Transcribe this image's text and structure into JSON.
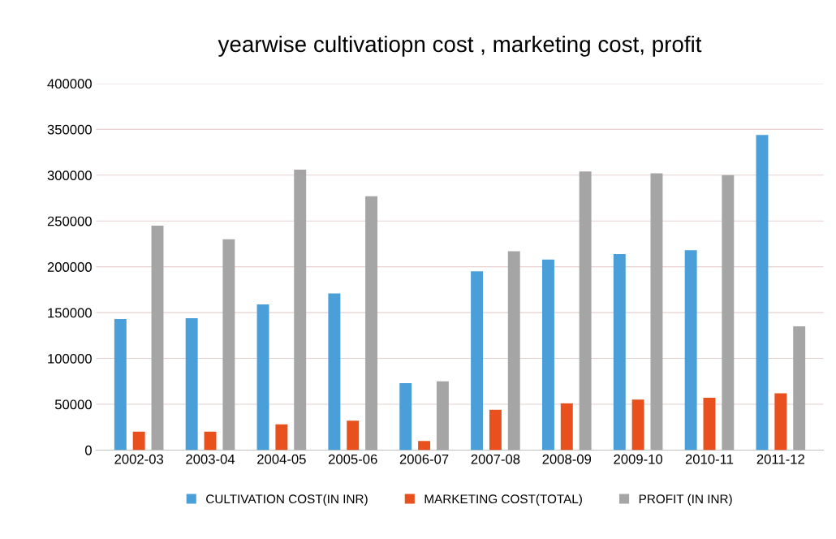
{
  "chart_data": {
    "type": "bar",
    "title": "yearwise cultivatiopn cost , marketing cost, profit",
    "categories": [
      "2002-03",
      "2003-04",
      "2004-05",
      "2005-06",
      "2006-07",
      "2007-08",
      "2008-09",
      "2009-10",
      "2010-11",
      "2011-12"
    ],
    "series": [
      {
        "name": "CULTIVATION COST(IN INR)",
        "color": "#4a9fd8",
        "values": [
          143000,
          144000,
          159000,
          171000,
          73000,
          195000,
          208000,
          214000,
          218000,
          344000
        ]
      },
      {
        "name": "MARKETING COST(TOTAL)",
        "color": "#e8501e",
        "values": [
          20000,
          20000,
          28000,
          32000,
          10000,
          44000,
          51000,
          55000,
          57000,
          62000
        ]
      },
      {
        "name": "PROFIT (IN INR)",
        "color": "#a5a5a5",
        "values": [
          245000,
          230000,
          306000,
          277000,
          75000,
          217000,
          304000,
          302000,
          300000,
          135000
        ]
      }
    ],
    "ylim": [
      0,
      400000
    ],
    "yticks": [
      0,
      50000,
      100000,
      150000,
      200000,
      250000,
      300000,
      350000,
      400000
    ],
    "grid": "y",
    "legend": "bottom"
  }
}
